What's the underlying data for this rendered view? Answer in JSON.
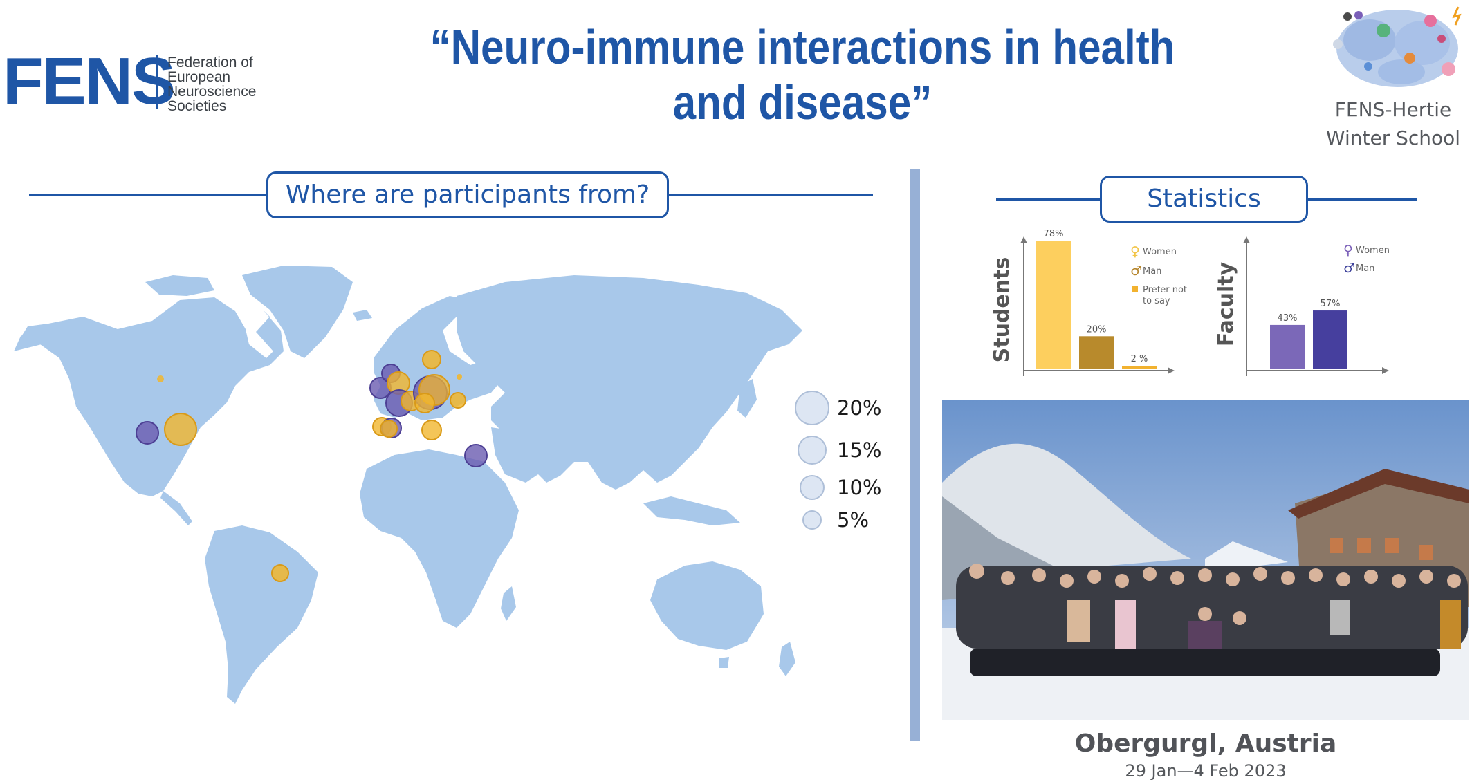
{
  "header": {
    "fens_logo_text": "FENS",
    "fens_full_name": [
      "Federation of",
      "European",
      "Neuroscience",
      "Societies"
    ],
    "title_line1": "“Neuro-immune interactions in health",
    "title_line2": "and disease”",
    "school_name_line1": "FENS-Hertie",
    "school_name_line2": "Winter School"
  },
  "map_section": {
    "header": "Where are participants from?",
    "bubble_legend": [
      "20%",
      "15%",
      "10%",
      "5%"
    ],
    "series_colors": {
      "purple": "#6a5bb0",
      "yellow": "#f1b62e"
    },
    "land_color": "#a8c8ea"
  },
  "stats_section": {
    "header": "Statistics",
    "students_chart": {
      "ylabel": "Students",
      "legend": [
        {
          "label": "Women",
          "icon": "female-symbol-icon",
          "color": "#f2c445"
        },
        {
          "label": "Man",
          "icon": "male-symbol-icon",
          "color": "#b5842b"
        },
        {
          "label": "Prefer not to say",
          "icon": "square-icon",
          "color": "#f2b22f"
        }
      ],
      "bars": [
        {
          "label": "78%",
          "value": 78,
          "color": "#fdcf5e"
        },
        {
          "label": "20%",
          "value": 20,
          "color": "#b88a2c"
        },
        {
          "label": "2 %",
          "value": 2,
          "color": "#f2b22f"
        }
      ]
    },
    "faculty_chart": {
      "ylabel": "Faculty",
      "legend": [
        {
          "label": "Women",
          "icon": "female-symbol-icon",
          "color": "#7a5fb8"
        },
        {
          "label": "Man",
          "icon": "male-symbol-icon",
          "color": "#3b3f9a"
        }
      ],
      "bars": [
        {
          "label": "43%",
          "value": 43,
          "color": "#7b68b8"
        },
        {
          "label": "57%",
          "value": 57,
          "color": "#463f9e"
        }
      ]
    }
  },
  "location": {
    "place": "Obergurgl, Austria",
    "dates": "29 Jan—4 Feb 2023"
  }
}
